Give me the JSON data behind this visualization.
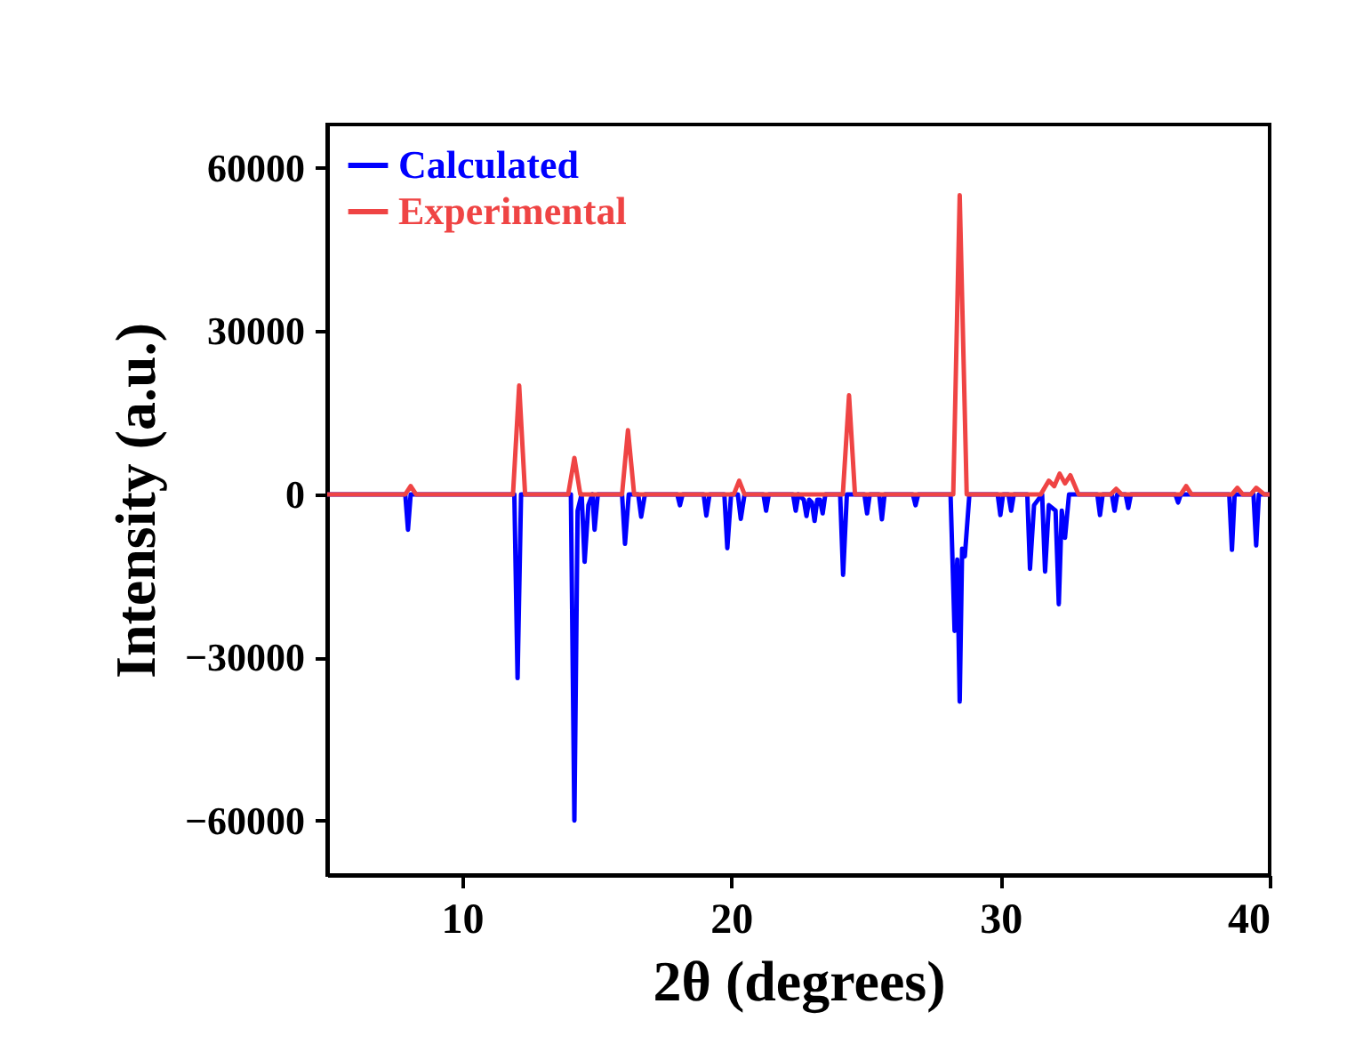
{
  "chart_data": {
    "type": "line",
    "xlabel": "2θ (degrees)",
    "ylabel": "Intensity (a.u.)",
    "xlim": [
      5,
      40
    ],
    "xticks": [
      10,
      20,
      30,
      40
    ],
    "ylim": [
      -70000,
      68000
    ],
    "yticks": [
      -60000,
      -30000,
      0,
      30000,
      60000
    ],
    "legend": "top left",
    "grid": false,
    "marker": "none",
    "series": [
      {
        "name": "Calculated",
        "color": "#0000ff",
        "x": [
          5,
          7.9,
          8.0,
          8.1,
          11.95,
          12.07,
          12.2,
          14.05,
          14.18,
          14.3,
          14.45,
          14.56,
          14.7,
          14.85,
          14.93,
          15.05,
          15.95,
          16.06,
          16.2,
          16.55,
          16.66,
          16.8,
          18.0,
          18.1,
          18.2,
          18.98,
          19.08,
          19.2,
          19.75,
          19.86,
          20.0,
          20.25,
          20.36,
          20.5,
          21.2,
          21.3,
          21.4,
          22.3,
          22.4,
          22.5,
          22.7,
          22.8,
          22.9,
          23.0,
          23.1,
          23.2,
          23.3,
          23.4,
          23.5,
          24.05,
          24.16,
          24.3,
          24.95,
          25.05,
          25.15,
          25.5,
          25.6,
          25.7,
          26.75,
          26.85,
          26.95,
          28.15,
          28.3,
          28.4,
          28.49,
          28.58,
          28.68,
          28.85,
          29.9,
          30.0,
          30.1,
          30.3,
          30.4,
          30.5,
          31.0,
          31.1,
          31.25,
          31.55,
          31.66,
          31.8,
          32.05,
          32.17,
          32.28,
          32.4,
          32.55,
          33.6,
          33.7,
          33.8,
          34.14,
          34.24,
          34.34,
          34.65,
          34.75,
          34.85,
          36.5,
          36.6,
          36.7,
          38.5,
          38.6,
          38.7,
          39.4,
          39.5,
          39.6,
          40
        ],
        "values": [
          0,
          0,
          -6500,
          0,
          0,
          -33800,
          0,
          0,
          -60000,
          -3000,
          0,
          -12400,
          -2000,
          0,
          -6500,
          0,
          0,
          -9100,
          0,
          0,
          -4100,
          0,
          0,
          -2000,
          0,
          0,
          -3900,
          0,
          0,
          -9900,
          0,
          0,
          -4500,
          0,
          0,
          -3000,
          0,
          0,
          -3000,
          0,
          -1000,
          -4000,
          -1000,
          -1500,
          -4900,
          -1000,
          -1000,
          -3500,
          0,
          0,
          -14800,
          0,
          0,
          -3500,
          0,
          0,
          -4600,
          0,
          0,
          -2000,
          0,
          0,
          -25100,
          -12000,
          -38100,
          -10000,
          -11400,
          0,
          0,
          -3800,
          0,
          0,
          -3000,
          0,
          0,
          -13700,
          -2000,
          0,
          -14200,
          -2000,
          -3000,
          -20200,
          -3000,
          -8000,
          0,
          0,
          -3800,
          0,
          0,
          -3000,
          0,
          0,
          -2500,
          0,
          0,
          -1500,
          0,
          0,
          -10200,
          0,
          0,
          -9400,
          0,
          0
        ]
      },
      {
        "name": "Experimental",
        "color": "#ef4444",
        "x": [
          5,
          7.9,
          8.1,
          8.3,
          11.9,
          12.13,
          12.35,
          13.95,
          14.18,
          14.4,
          15.95,
          16.17,
          16.4,
          20.1,
          20.3,
          20.5,
          24.15,
          24.38,
          24.6,
          28.25,
          28.49,
          28.75,
          31.5,
          31.8,
          32.0,
          32.2,
          32.4,
          32.6,
          32.9,
          34.1,
          34.3,
          34.5,
          36.7,
          36.9,
          37.1,
          38.6,
          38.8,
          39.0,
          39.3,
          39.5,
          39.8,
          40
        ],
        "values": [
          0,
          0,
          1500,
          0,
          0,
          20000,
          0,
          0,
          6700,
          0,
          0,
          11800,
          0,
          0,
          2500,
          0,
          0,
          18200,
          0,
          0,
          55000,
          0,
          0,
          2500,
          1500,
          3800,
          2000,
          3500,
          0,
          0,
          1000,
          0,
          0,
          1500,
          0,
          0,
          1200,
          0,
          0,
          1200,
          0,
          0
        ]
      }
    ]
  }
}
